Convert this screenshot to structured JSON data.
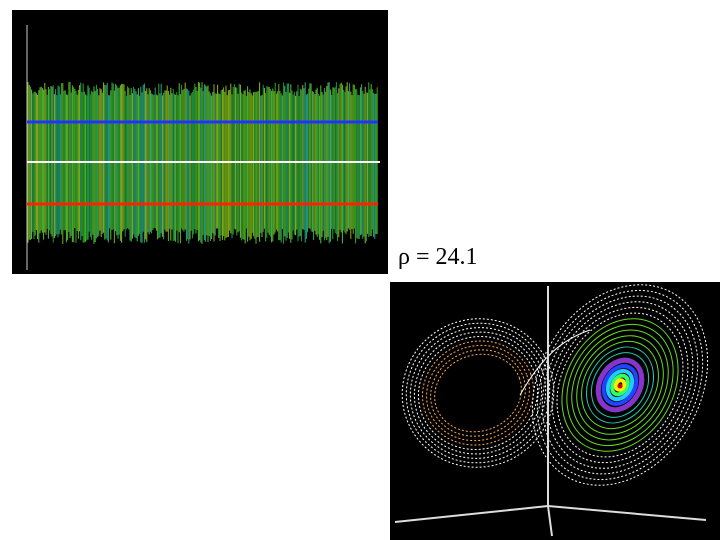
{
  "label": "ρ = 24.1"
}
